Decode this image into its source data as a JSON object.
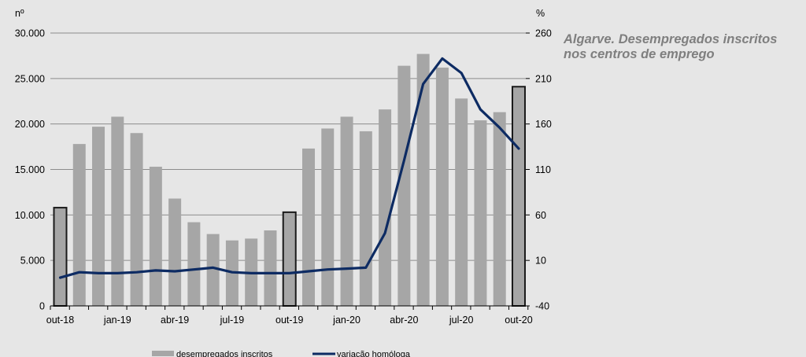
{
  "chart_data": {
    "type": "bar",
    "title": "Algarve. Desempregados inscritos nos centros de emprego",
    "y_left_unit": "nº",
    "y_right_unit": "%",
    "y_left_ticks": [
      "0",
      "5.000",
      "10.000",
      "15.000",
      "20.000",
      "25.000",
      "30.000"
    ],
    "y_right_ticks": [
      "-40",
      "10",
      "60",
      "110",
      "160",
      "210",
      "260"
    ],
    "ylim_left": [
      0,
      30000
    ],
    "ylim_right": [
      -40,
      260
    ],
    "x_tick_labels": [
      "out-18",
      "jan-19",
      "abr-19",
      "jul-19",
      "out-19",
      "jan-20",
      "abr-20",
      "jul-20",
      "out-20"
    ],
    "categories": [
      "out-18",
      "nov-18",
      "dez-18",
      "jan-19",
      "fev-19",
      "mar-19",
      "abr-19",
      "mai-19",
      "jun-19",
      "jul-19",
      "ago-19",
      "set-19",
      "out-19",
      "nov-19",
      "dez-19",
      "jan-20",
      "fev-20",
      "mar-20",
      "abr-20",
      "mai-20",
      "jun-20",
      "jul-20",
      "ago-20",
      "set-20",
      "out-20"
    ],
    "highlighted_categories": [
      "out-18",
      "out-19",
      "out-20"
    ],
    "grid": true,
    "legend_position": "bottom",
    "colors": {
      "bars": "#a6a6a6",
      "bar_highlight_border": "#1a1a1a",
      "line": "#0d2b63",
      "grid": "#8c8c8c",
      "title": "#7f7f7f"
    },
    "series": [
      {
        "name": "desempregados inscritos",
        "kind": "bar",
        "axis": "left",
        "values": [
          10800,
          17800,
          19700,
          20800,
          19000,
          15300,
          11800,
          9200,
          7900,
          7200,
          7400,
          8300,
          10300,
          17300,
          19500,
          20800,
          19200,
          21600,
          26400,
          27700,
          26200,
          22800,
          20400,
          21300,
          24100
        ]
      },
      {
        "name": "variação homóloga",
        "kind": "line",
        "axis": "right",
        "values": [
          -9,
          -3,
          -4,
          -4,
          -3,
          -1,
          -2,
          0,
          2,
          -3,
          -4,
          -4,
          -4,
          -2,
          0,
          1,
          2,
          40,
          120,
          204,
          232,
          216,
          176,
          156,
          133
        ]
      }
    ]
  }
}
